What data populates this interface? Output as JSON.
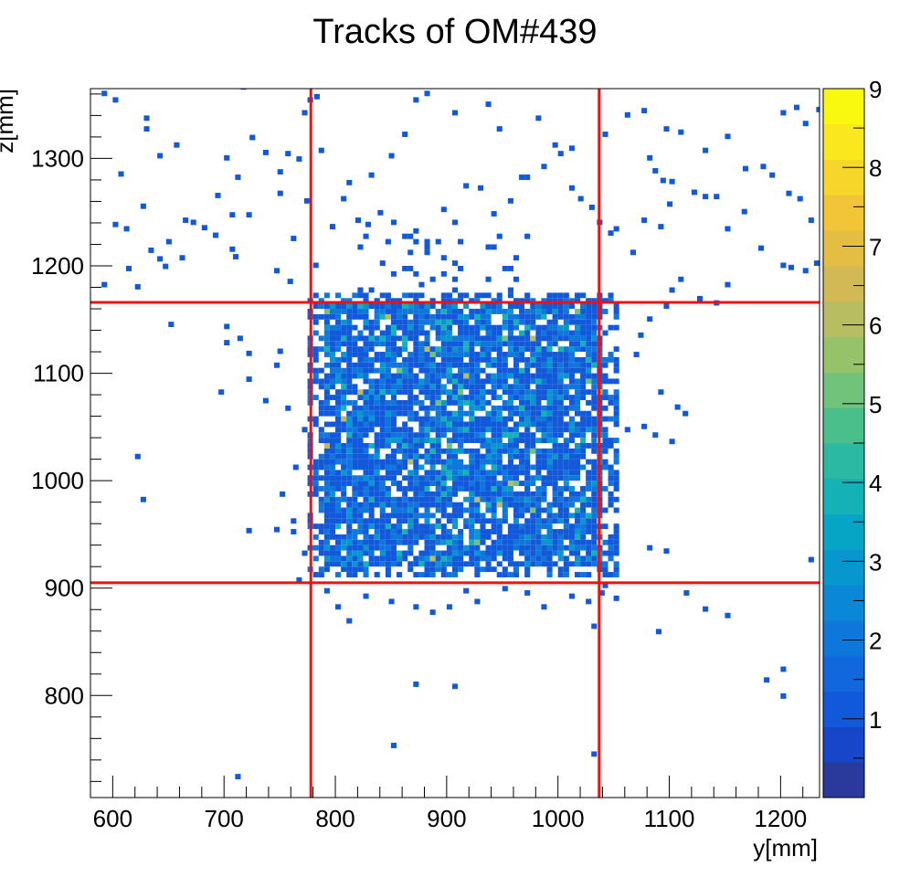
{
  "chart_data": {
    "type": "heatmap",
    "title": "Tracks of OM#439",
    "xlabel": "y[mm]",
    "ylabel": "z[mm]",
    "xlim": [
      580,
      1235
    ],
    "ylim": [
      705,
      1365
    ],
    "x_ticks": [
      "600",
      "700",
      "800",
      "900",
      "1000",
      "1100",
      "1200"
    ],
    "y_ticks": [
      "800",
      "900",
      "1000",
      "1100",
      "1200",
      "1300"
    ],
    "colorbar": {
      "range": [
        0,
        9
      ],
      "ticks": [
        "1",
        "2",
        "3",
        "4",
        "5",
        "6",
        "7",
        "8",
        "9"
      ]
    },
    "bin_size_mm": 5,
    "grid": false,
    "reference_lines": {
      "vertical_x": [
        778,
        1037
      ],
      "horizontal_z": [
        905,
        1166
      ],
      "color": "#ee1111"
    },
    "dense_region": {
      "x_range": [
        775,
        1055
      ],
      "z_range": [
        910,
        1175
      ],
      "typical_count": "1-3",
      "max_count": 6
    },
    "outlier_points": [
      [
        590,
        1358
      ],
      [
        600,
        1352
      ],
      [
        605,
        1283
      ],
      [
        628,
        1335
      ],
      [
        628,
        1325
      ],
      [
        640,
        1300
      ],
      [
        655,
        1310
      ],
      [
        610,
        1232
      ],
      [
        625,
        1253
      ],
      [
        632,
        1212
      ],
      [
        645,
        1197
      ],
      [
        663,
        1240
      ],
      [
        680,
        1233
      ],
      [
        692,
        1263
      ],
      [
        700,
        1298
      ],
      [
        710,
        1280
      ],
      [
        715,
        1364
      ],
      [
        723,
        1317
      ],
      [
        735,
        1303
      ],
      [
        748,
        1285
      ],
      [
        755,
        1302
      ],
      [
        765,
        1297
      ],
      [
        770,
        1340
      ],
      [
        775,
        1352
      ],
      [
        781,
        1355
      ],
      [
        785,
        1305
      ],
      [
        772,
        1258
      ],
      [
        748,
        1265
      ],
      [
        760,
        1223
      ],
      [
        720,
        1245
      ],
      [
        705,
        1245
      ],
      [
        690,
        1226
      ],
      [
        670,
        1238
      ],
      [
        660,
        1205
      ],
      [
        648,
        1220
      ],
      [
        640,
        1204
      ],
      [
        620,
        1178
      ],
      [
        590,
        1180
      ],
      [
        612,
        1195
      ],
      [
        600,
        1236
      ],
      [
        705,
        1213
      ],
      [
        708,
        1206
      ],
      [
        745,
        1193
      ],
      [
        757,
        1183
      ],
      [
        780,
        1198
      ],
      [
        795,
        1234
      ],
      [
        805,
        1260
      ],
      [
        810,
        1275
      ],
      [
        830,
        1282
      ],
      [
        848,
        1300
      ],
      [
        860,
        1320
      ],
      [
        870,
        1352
      ],
      [
        880,
        1358
      ],
      [
        905,
        1340
      ],
      [
        935,
        1348
      ],
      [
        945,
        1325
      ],
      [
        980,
        1335
      ],
      [
        995,
        1310
      ],
      [
        1010,
        1307
      ],
      [
        1040,
        1320
      ],
      [
        1060,
        1338
      ],
      [
        1075,
        1342
      ],
      [
        1080,
        1298
      ],
      [
        1085,
        1286
      ],
      [
        1095,
        1325
      ],
      [
        1108,
        1322
      ],
      [
        1130,
        1305
      ],
      [
        1150,
        1318
      ],
      [
        1166,
        1288
      ],
      [
        1182,
        1290
      ],
      [
        1190,
        1282
      ],
      [
        1200,
        1340
      ],
      [
        1212,
        1345
      ],
      [
        1220,
        1330
      ],
      [
        1232,
        1343
      ],
      [
        1205,
        1265
      ],
      [
        1215,
        1260
      ],
      [
        1225,
        1240
      ],
      [
        1230,
        1200
      ],
      [
        1220,
        1193
      ],
      [
        1207,
        1196
      ],
      [
        1200,
        1198
      ],
      [
        1180,
        1214
      ],
      [
        1165,
        1248
      ],
      [
        1150,
        1232
      ],
      [
        1140,
        1262
      ],
      [
        1130,
        1262
      ],
      [
        1120,
        1266
      ],
      [
        1100,
        1276
      ],
      [
        1092,
        1277
      ],
      [
        1098,
        1255
      ],
      [
        1090,
        1234
      ],
      [
        1075,
        1240
      ],
      [
        1065,
        1210
      ],
      [
        1050,
        1232
      ],
      [
        1045,
        1228
      ],
      [
        1035,
        1238
      ],
      [
        1028,
        1252
      ],
      [
        1018,
        1260
      ],
      [
        1010,
        1270
      ],
      [
        1000,
        1302
      ],
      [
        985,
        1290
      ],
      [
        970,
        1280
      ],
      [
        965,
        1280
      ],
      [
        955,
        1258
      ],
      [
        940,
        1246
      ],
      [
        928,
        1270
      ],
      [
        915,
        1272
      ],
      [
        905,
        1238
      ],
      [
        895,
        1250
      ],
      [
        880,
        1215
      ],
      [
        870,
        1230
      ],
      [
        860,
        1225
      ],
      [
        850,
        1238
      ],
      [
        838,
        1247
      ],
      [
        827,
        1236
      ],
      [
        818,
        1240
      ],
      [
        1108,
        1185
      ],
      [
        1125,
        1167
      ],
      [
        1140,
        1163
      ],
      [
        1150,
        1180
      ],
      [
        1100,
        1175
      ],
      [
        1095,
        1160
      ],
      [
        1080,
        1148
      ],
      [
        1072,
        1133
      ],
      [
        1068,
        1115
      ],
      [
        1090,
        1080
      ],
      [
        1105,
        1066
      ],
      [
        1112,
        1060
      ],
      [
        1100,
        1034
      ],
      [
        1085,
        1040
      ],
      [
        1075,
        1048
      ],
      [
        1060,
        1045
      ],
      [
        1080,
        935
      ],
      [
        1095,
        932
      ],
      [
        1113,
        893
      ],
      [
        1130,
        878
      ],
      [
        1150,
        872
      ],
      [
        1088,
        857
      ],
      [
        1200,
        822
      ],
      [
        1185,
        812
      ],
      [
        1200,
        797
      ],
      [
        700,
        1141
      ],
      [
        712,
        1130
      ],
      [
        700,
        1126
      ],
      [
        720,
        1116
      ],
      [
        748,
        1118
      ],
      [
        745,
        1105
      ],
      [
        720,
        1092
      ],
      [
        695,
        1080
      ],
      [
        735,
        1072
      ],
      [
        755,
        1065
      ],
      [
        650,
        1143
      ],
      [
        620,
        1020
      ],
      [
        625,
        980
      ],
      [
        720,
        951
      ],
      [
        745,
        952
      ],
      [
        760,
        950
      ],
      [
        770,
        1045
      ],
      [
        762,
        1010
      ],
      [
        750,
        985
      ],
      [
        760,
        960
      ],
      [
        770,
        930
      ],
      [
        765,
        905
      ],
      [
        790,
        895
      ],
      [
        800,
        880
      ],
      [
        810,
        867
      ],
      [
        825,
        890
      ],
      [
        848,
        885
      ],
      [
        870,
        880
      ],
      [
        885,
        875
      ],
      [
        900,
        880
      ],
      [
        915,
        895
      ],
      [
        925,
        885
      ],
      [
        950,
        897
      ],
      [
        970,
        893
      ],
      [
        985,
        880
      ],
      [
        1010,
        890
      ],
      [
        1025,
        885
      ],
      [
        1037,
        893
      ],
      [
        1040,
        900
      ],
      [
        1050,
        888
      ],
      [
        1030,
        862
      ],
      [
        870,
        808
      ],
      [
        905,
        806
      ],
      [
        850,
        751
      ],
      [
        1030,
        743
      ],
      [
        710,
        722
      ],
      [
        1225,
        924
      ]
    ]
  }
}
